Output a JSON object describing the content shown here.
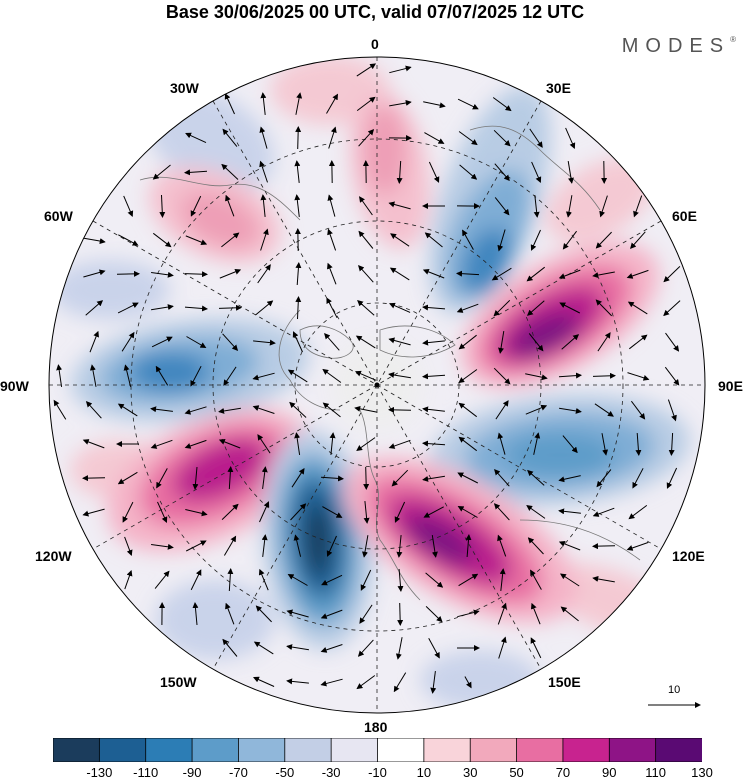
{
  "title": "Base 30/06/2025 00 UTC, valid 07/07/2025 12 UTC",
  "logo": {
    "text": "MODES",
    "mark": "®"
  },
  "longitude_labels": [
    "0",
    "30E",
    "60E",
    "90E",
    "120E",
    "150E",
    "180",
    "150W",
    "120W",
    "90W",
    "60W",
    "30W"
  ],
  "reference_vector": {
    "label": "10"
  },
  "legend": {
    "ticks": [
      "-130",
      "-110",
      "-90",
      "-70",
      "-50",
      "-30",
      "-10",
      "10",
      "30",
      "50",
      "70",
      "90",
      "110",
      "130"
    ],
    "colors": [
      "#1b3c5c",
      "#1d5f93",
      "#2c7db5",
      "#5d9cc9",
      "#90b7da",
      "#c3cfe6",
      "#e7e6f2",
      "#ffffff",
      "#f9d4da",
      "#f2a9bc",
      "#e86ea2",
      "#c8238f",
      "#8e1486",
      "#5a0a73"
    ]
  }
}
